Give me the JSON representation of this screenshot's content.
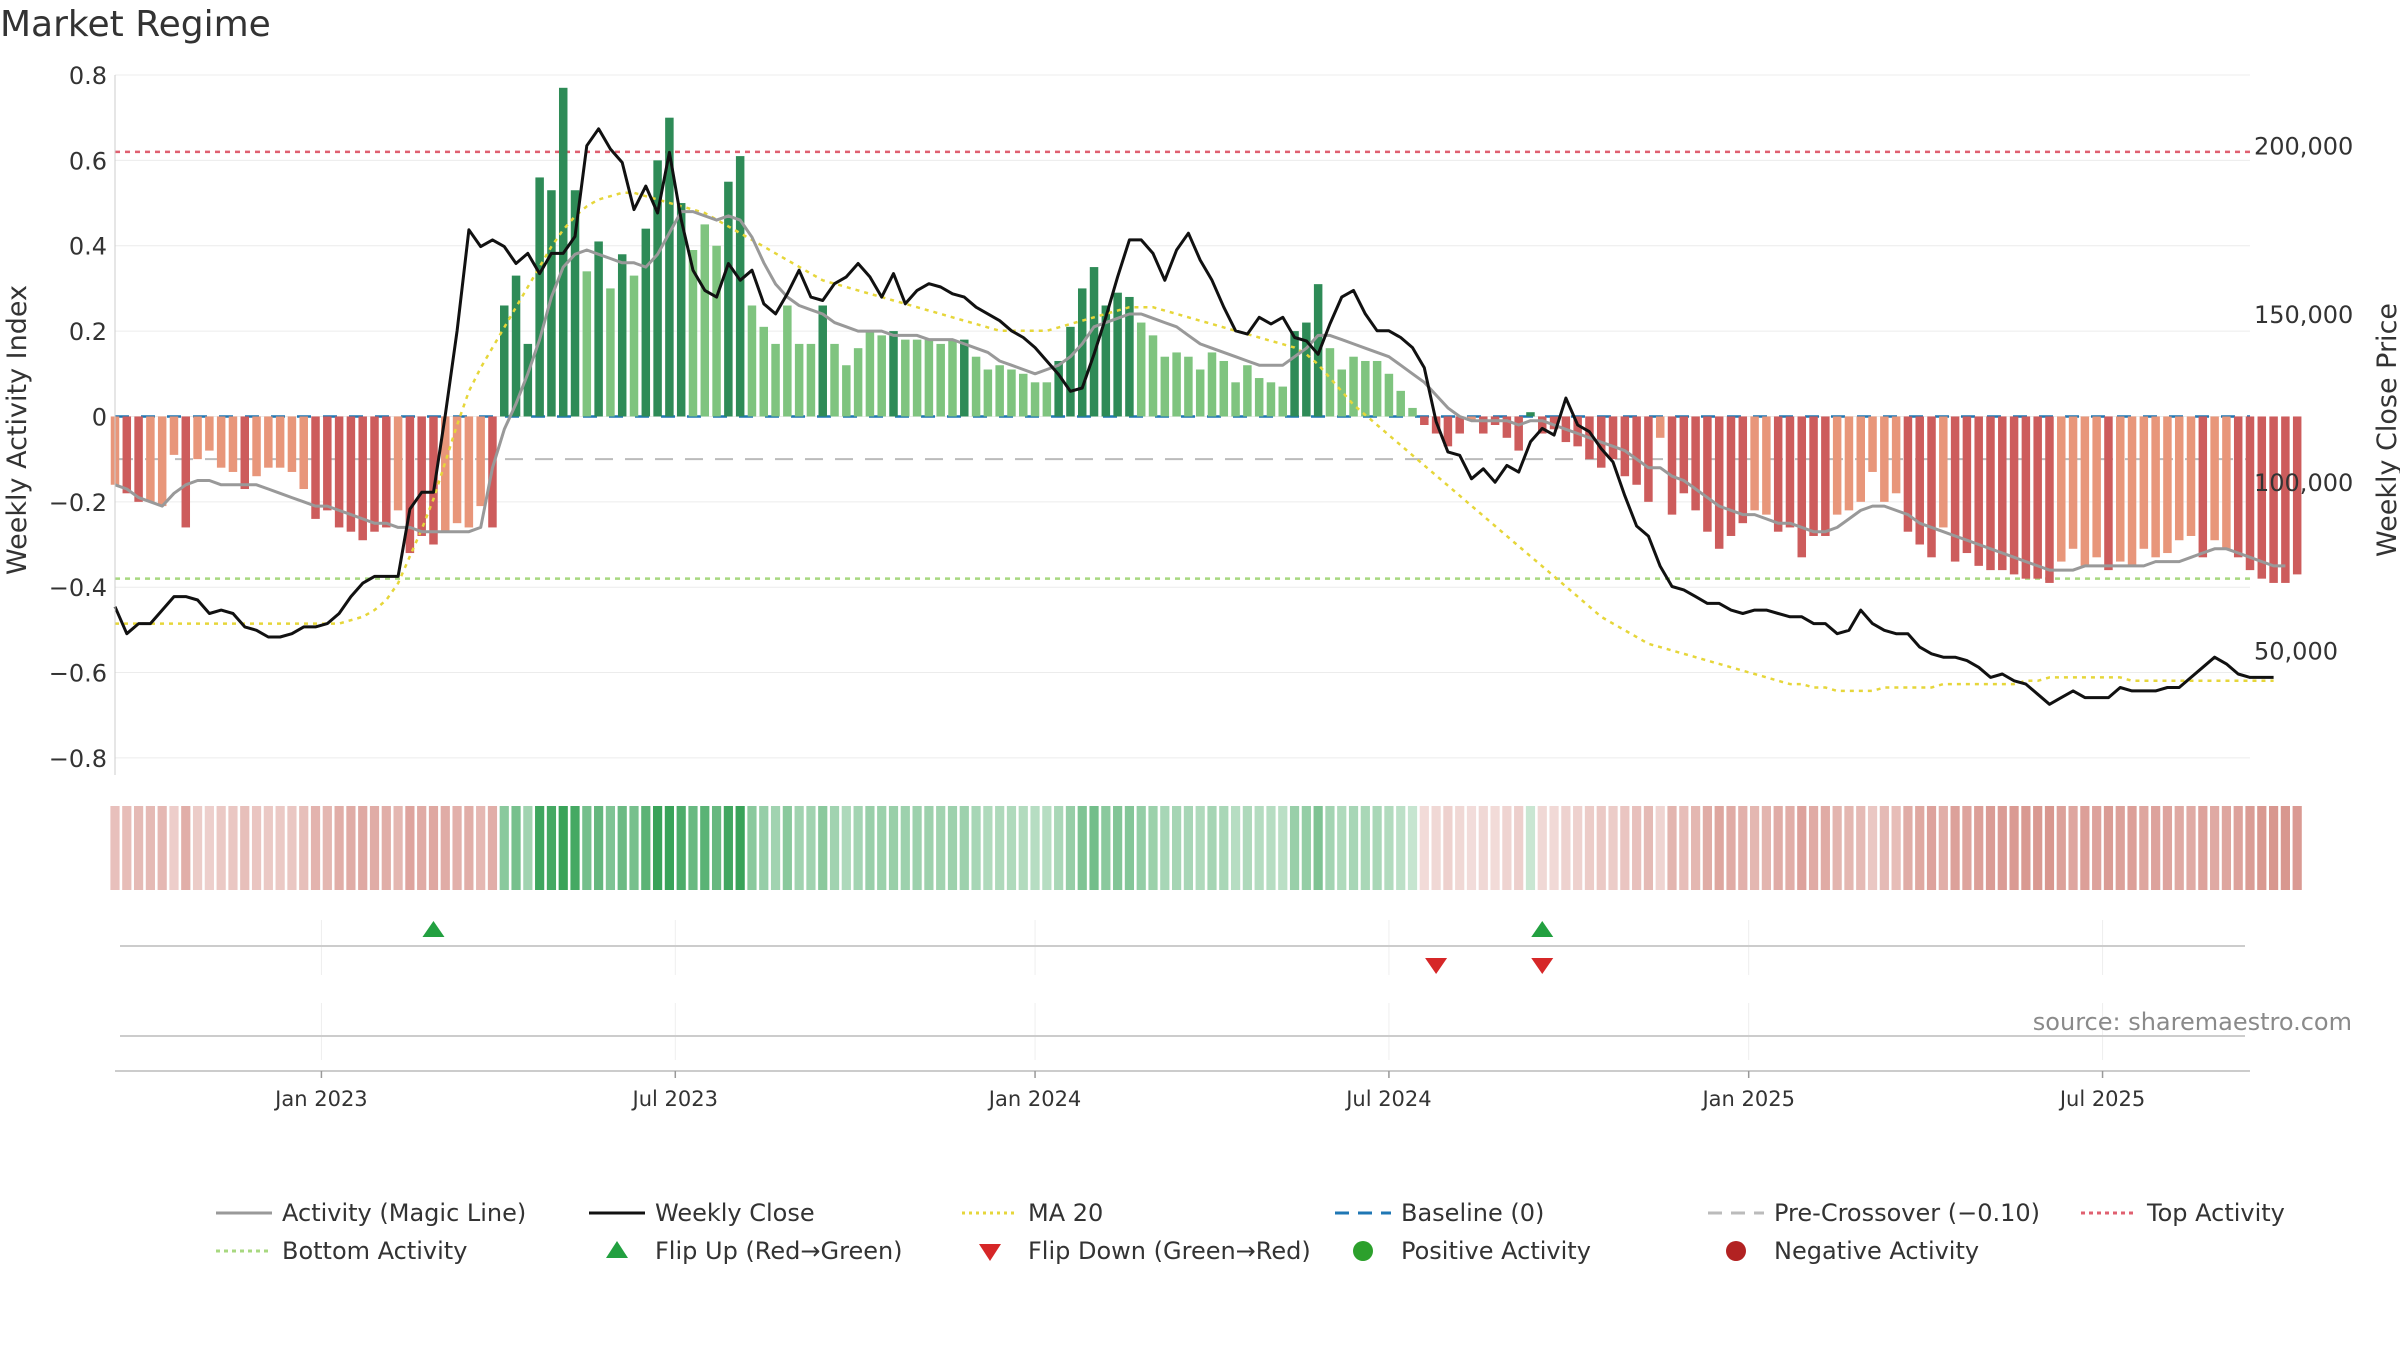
{
  "title": "Market Regime",
  "source": "source: sharemaestro.com",
  "colors": {
    "magic": "#999999",
    "close": "#111111",
    "ma20": "#e6d63a",
    "baseline": "#1f77b4",
    "pre_crossover": "#bbbbbb",
    "top": "#e06070",
    "bottom": "#a8d880",
    "pos_dark": "#2e8b57",
    "pos_light": "#7fc47f",
    "neg_dark": "#cd5c5c",
    "neg_light": "#e8967a",
    "flip_up": "#22a040",
    "flip_down": "#d62728",
    "positive": "#2ca02c",
    "negative": "#b22222"
  },
  "chart_data": {
    "type": "bar",
    "ylabel_left": "Weekly Activity Index",
    "ylabel_right": "Weekly Close Price",
    "left_ticks": [
      "0.8",
      "0.6",
      "0.4",
      "0.2",
      "0",
      "−0.2",
      "−0.4",
      "−0.6",
      "−0.8"
    ],
    "left_tick_values": [
      0.8,
      0.6,
      0.4,
      0.2,
      0,
      -0.2,
      -0.4,
      -0.6,
      -0.8
    ],
    "right_ticks": [
      "200,000",
      "150,000",
      "100,000",
      "50,000"
    ],
    "right_tick_values": [
      200000,
      150000,
      100000,
      50000
    ],
    "ylim_left": [
      -0.84,
      0.8
    ],
    "ylim_right": [
      13000,
      221000
    ],
    "x_ticks": [
      "Jan 2023",
      "Jul 2023",
      "Jan 2024",
      "Jul 2024",
      "Jan 2025",
      "Jul 2025"
    ],
    "x_tick_weeks": [
      17.5,
      47.5,
      78,
      108,
      138.5,
      168.5
    ],
    "weeks": 182,
    "top_activity": 0.62,
    "bottom_activity": -0.38,
    "baseline": 0,
    "pre_crossover": -0.1,
    "activity": [
      -0.16,
      -0.18,
      -0.2,
      -0.2,
      -0.21,
      -0.09,
      -0.26,
      -0.1,
      -0.08,
      -0.12,
      -0.13,
      -0.17,
      -0.14,
      -0.12,
      -0.12,
      -0.13,
      -0.17,
      -0.24,
      -0.22,
      -0.26,
      -0.27,
      -0.29,
      -0.27,
      -0.26,
      -0.22,
      -0.32,
      -0.28,
      -0.3,
      -0.27,
      -0.25,
      -0.26,
      -0.21,
      -0.26,
      0.26,
      0.33,
      0.17,
      0.56,
      0.53,
      0.77,
      0.53,
      0.34,
      0.41,
      0.3,
      0.38,
      0.33,
      0.44,
      0.6,
      0.7,
      0.5,
      0.39,
      0.45,
      0.4,
      0.55,
      0.61,
      0.26,
      0.21,
      0.17,
      0.26,
      0.17,
      0.17,
      0.26,
      0.17,
      0.12,
      0.16,
      0.2,
      0.19,
      0.2,
      0.18,
      0.18,
      0.18,
      0.17,
      0.18,
      0.18,
      0.14,
      0.11,
      0.12,
      0.11,
      0.1,
      0.08,
      0.08,
      0.13,
      0.21,
      0.3,
      0.35,
      0.26,
      0.29,
      0.28,
      0.22,
      0.19,
      0.14,
      0.15,
      0.14,
      0.11,
      0.15,
      0.13,
      0.08,
      0.12,
      0.09,
      0.08,
      0.07,
      0.2,
      0.22,
      0.31,
      0.16,
      0.11,
      0.14,
      0.13,
      0.13,
      0.1,
      0.06,
      0.02,
      -0.02,
      -0.04,
      -0.07,
      -0.04,
      -0.01,
      -0.04,
      -0.02,
      -0.05,
      -0.08,
      0.01,
      -0.04,
      -0.03,
      -0.06,
      -0.07,
      -0.1,
      -0.12,
      -0.1,
      -0.14,
      -0.16,
      -0.2,
      -0.05,
      -0.23,
      -0.18,
      -0.22,
      -0.27,
      -0.31,
      -0.28,
      -0.25,
      -0.22,
      -0.23,
      -0.27,
      -0.26,
      -0.33,
      -0.28,
      -0.28,
      -0.23,
      -0.22,
      -0.2,
      -0.13,
      -0.2,
      -0.18,
      -0.27,
      -0.3,
      -0.33,
      -0.26,
      -0.34,
      -0.32,
      -0.35,
      -0.36,
      -0.36,
      -0.37,
      -0.38,
      -0.38,
      -0.39,
      -0.34,
      -0.31,
      -0.35,
      -0.33,
      -0.36,
      -0.34,
      -0.35,
      -0.31,
      -0.33,
      -0.32,
      -0.29,
      -0.28,
      -0.33,
      -0.29,
      -0.31,
      -0.33,
      -0.36,
      -0.38,
      -0.39,
      -0.39,
      -0.37
    ],
    "magic_line": [
      -0.16,
      -0.17,
      -0.19,
      -0.2,
      -0.21,
      -0.18,
      -0.16,
      -0.15,
      -0.15,
      -0.16,
      -0.16,
      -0.16,
      -0.16,
      -0.17,
      -0.18,
      -0.19,
      -0.2,
      -0.21,
      -0.21,
      -0.22,
      -0.23,
      -0.24,
      -0.25,
      -0.25,
      -0.26,
      -0.26,
      -0.27,
      -0.27,
      -0.27,
      -0.27,
      -0.27,
      -0.26,
      -0.12,
      -0.03,
      0.03,
      0.1,
      0.18,
      0.28,
      0.35,
      0.38,
      0.39,
      0.38,
      0.37,
      0.36,
      0.36,
      0.35,
      0.38,
      0.43,
      0.48,
      0.48,
      0.47,
      0.46,
      0.47,
      0.46,
      0.42,
      0.36,
      0.31,
      0.28,
      0.26,
      0.25,
      0.24,
      0.22,
      0.21,
      0.2,
      0.2,
      0.2,
      0.19,
      0.19,
      0.19,
      0.18,
      0.18,
      0.18,
      0.17,
      0.16,
      0.15,
      0.13,
      0.12,
      0.11,
      0.1,
      0.11,
      0.12,
      0.14,
      0.17,
      0.21,
      0.22,
      0.23,
      0.24,
      0.24,
      0.23,
      0.22,
      0.21,
      0.19,
      0.17,
      0.16,
      0.15,
      0.14,
      0.13,
      0.12,
      0.12,
      0.12,
      0.14,
      0.16,
      0.19,
      0.19,
      0.18,
      0.17,
      0.16,
      0.15,
      0.14,
      0.12,
      0.1,
      0.08,
      0.05,
      0.02,
      0,
      -0.01,
      -0.01,
      -0.01,
      -0.01,
      -0.02,
      -0.01,
      -0.01,
      -0.02,
      -0.03,
      -0.04,
      -0.05,
      -0.06,
      -0.07,
      -0.08,
      -0.1,
      -0.12,
      -0.12,
      -0.14,
      -0.15,
      -0.17,
      -0.19,
      -0.21,
      -0.22,
      -0.23,
      -0.23,
      -0.24,
      -0.25,
      -0.25,
      -0.26,
      -0.27,
      -0.27,
      -0.26,
      -0.24,
      -0.22,
      -0.21,
      -0.21,
      -0.22,
      -0.23,
      -0.25,
      -0.26,
      -0.27,
      -0.28,
      -0.29,
      -0.3,
      -0.31,
      -0.32,
      -0.33,
      -0.34,
      -0.35,
      -0.36,
      -0.36,
      -0.36,
      -0.35,
      -0.35,
      -0.35,
      -0.35,
      -0.35,
      -0.35,
      -0.34,
      -0.34,
      -0.34,
      -0.33,
      -0.32,
      -0.31,
      -0.31,
      -0.32,
      -0.33,
      -0.34,
      -0.35,
      -0.35
    ],
    "weekly_close": [
      63000,
      55000,
      58000,
      58000,
      62000,
      66000,
      66000,
      65000,
      61000,
      62000,
      61000,
      57000,
      56000,
      54000,
      54000,
      55000,
      57000,
      57000,
      58000,
      61000,
      66000,
      70000,
      72000,
      72000,
      72000,
      92000,
      97000,
      97000,
      120000,
      145000,
      175000,
      170000,
      172000,
      170000,
      165000,
      168000,
      162000,
      168000,
      168000,
      173000,
      200000,
      205000,
      199000,
      195000,
      181000,
      188000,
      180000,
      198000,
      178000,
      163000,
      157000,
      155000,
      165000,
      160000,
      163000,
      153000,
      150000,
      156000,
      163000,
      155000,
      154000,
      159000,
      161000,
      165000,
      161000,
      155000,
      162000,
      153000,
      157000,
      159000,
      158000,
      156000,
      155000,
      152000,
      150000,
      148000,
      145000,
      143000,
      140000,
      136000,
      132000,
      127000,
      128000,
      138000,
      149000,
      161000,
      172000,
      172000,
      168000,
      160000,
      169000,
      174000,
      166000,
      160000,
      152000,
      145000,
      144000,
      149000,
      147000,
      149000,
      143000,
      142000,
      138000,
      147000,
      155000,
      157000,
      150000,
      145000,
      145000,
      143000,
      140000,
      134000,
      118000,
      109000,
      108000,
      101000,
      104000,
      100000,
      105000,
      103000,
      112000,
      116000,
      114000,
      125000,
      117000,
      115000,
      110000,
      106000,
      96000,
      87000,
      84000,
      75000,
      69000,
      68000,
      66000,
      64000,
      64000,
      62000,
      61000,
      62000,
      62000,
      61000,
      60000,
      60000,
      58000,
      58000,
      55000,
      56000,
      62000,
      58000,
      56000,
      55000,
      55000,
      51000,
      49000,
      48000,
      48000,
      47000,
      45000,
      42000,
      43000,
      41000,
      40000,
      37000,
      34000,
      36000,
      38000,
      36000,
      36000,
      36000,
      39000,
      38000,
      38000,
      38000,
      39000,
      39000,
      42000,
      45000,
      48000,
      46000,
      43000,
      42000,
      42000,
      42000
    ],
    "ma20_close": [
      58000,
      58000,
      58000,
      58000,
      58000,
      58000,
      58000,
      58000,
      58000,
      58000,
      58000,
      58000,
      58000,
      58000,
      58000,
      58000,
      58000,
      58000,
      58000,
      58000,
      59000,
      60000,
      62000,
      65000,
      70000,
      78000,
      86000,
      95000,
      106000,
      117000,
      127000,
      134000,
      140000,
      146000,
      152000,
      158000,
      164000,
      170000,
      175000,
      179000,
      182000,
      184000,
      185000,
      186000,
      186000,
      185000,
      184000,
      183000,
      182000,
      181000,
      180000,
      178000,
      176000,
      174000,
      172000,
      170000,
      168000,
      166000,
      164000,
      162000,
      160000,
      159000,
      158000,
      157000,
      156000,
      155000,
      154000,
      153000,
      152000,
      151000,
      150000,
      149000,
      148000,
      147000,
      146000,
      145000,
      145000,
      145000,
      145000,
      145000,
      146000,
      147000,
      148000,
      149000,
      150000,
      151000,
      152000,
      152000,
      152000,
      151000,
      150000,
      149000,
      148000,
      147000,
      146000,
      145000,
      144000,
      143000,
      142000,
      141000,
      140000,
      138000,
      135000,
      131000,
      127000,
      123000,
      120000,
      117000,
      114000,
      111000,
      108000,
      105000,
      102000,
      99000,
      96000,
      93000,
      90000,
      87000,
      84000,
      81000,
      78000,
      75000,
      72000,
      69000,
      66000,
      63000,
      60000,
      58000,
      56000,
      54000,
      52000,
      51000,
      50000,
      49000,
      48000,
      47000,
      46000,
      45000,
      44000,
      43000,
      42000,
      41000,
      40000,
      40000,
      39000,
      39000,
      38000,
      38000,
      38000,
      38000,
      39000,
      39000,
      39000,
      39000,
      39000,
      40000,
      40000,
      40000,
      40000,
      40000,
      40000,
      40000,
      41000,
      41000,
      42000,
      42000,
      42000,
      42000,
      42000,
      42000,
      42000,
      41000,
      41000,
      41000,
      41000,
      41000,
      41000,
      41000,
      41000,
      41000,
      41000,
      41000,
      41000,
      41000
    ],
    "flips_up": [
      27,
      121
    ],
    "flips_down": [
      112,
      121
    ],
    "legend": [
      {
        "label": "Activity (Magic Line)",
        "symbol": "solid-gray-line"
      },
      {
        "label": "Weekly Close",
        "symbol": "solid-black-line"
      },
      {
        "label": "MA 20",
        "symbol": "dotted-yellow-line"
      },
      {
        "label": "Baseline (0)",
        "symbol": "dashed-blue-line"
      },
      {
        "label": "Pre-Crossover (−0.10)",
        "symbol": "dashed-gray-line"
      },
      {
        "label": "Top Activity",
        "symbol": "dotted-red-line"
      },
      {
        "label": "Bottom Activity",
        "symbol": "dotted-green-line"
      },
      {
        "label": "Flip Up (Red→Green)",
        "symbol": "green-up-triangle"
      },
      {
        "label": "Flip Down (Green→Red)",
        "symbol": "red-down-triangle"
      },
      {
        "label": "Positive Activity",
        "symbol": "green-dot"
      },
      {
        "label": "Negative Activity",
        "symbol": "red-dot"
      }
    ]
  }
}
